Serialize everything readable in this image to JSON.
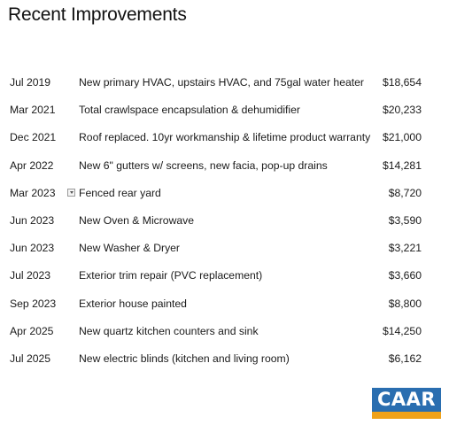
{
  "page": {
    "title": "Recent Improvements"
  },
  "improvements": [
    {
      "date": "Jul 2019",
      "description": "New primary HVAC, upstairs HVAC, and 75gal water heater",
      "cost": "$18,654"
    },
    {
      "date": "Mar 2021",
      "description": "Total crawlspace encapsulation & dehumidifier",
      "cost": "$20,233"
    },
    {
      "date": "Dec 2021",
      "description": "Roof replaced. 10yr workmanship & lifetime product warranty",
      "cost": "$21,000"
    },
    {
      "date": "Apr 2022",
      "description": "New 6\" gutters w/ screens, new facia, pop-up drains",
      "cost": "$14,281"
    },
    {
      "date": "Mar 2023",
      "description": "Fenced rear yard",
      "cost": "$8,720"
    },
    {
      "date": "Jun 2023",
      "description": "New Oven & Microwave",
      "cost": "$3,590"
    },
    {
      "date": "Jun 2023",
      "description": "New Washer & Dryer",
      "cost": "$3,221"
    },
    {
      "date": "Jul 2023",
      "description": "Exterior trim repair (PVC replacement)",
      "cost": "$3,660"
    },
    {
      "date": "Sep 2023",
      "description": "Exterior house painted",
      "cost": "$8,800"
    },
    {
      "date": "Apr 2025",
      "description": "New quartz kitchen counters and sink",
      "cost": "$14,250"
    },
    {
      "date": "Jul 2025",
      "description": "New electric blinds (kitchen and living room)",
      "cost": "$6,162"
    }
  ],
  "logo": {
    "text": "CAAR",
    "background_color": "#2a6eb0",
    "stripe_color": "#f0a21a"
  },
  "icons": {
    "dropdown": "chevron-down-icon"
  }
}
